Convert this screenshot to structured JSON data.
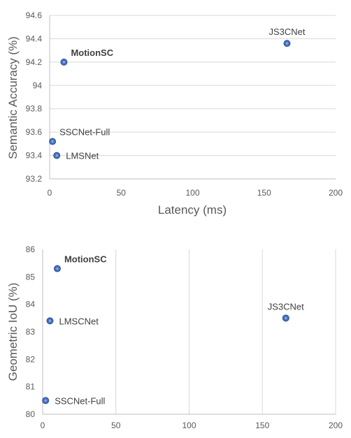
{
  "chart_data": [
    {
      "type": "scatter",
      "title": "",
      "xlabel": "Latency (ms)",
      "ylabel": "Semantic Accuracy (%)",
      "xlim": [
        0,
        200
      ],
      "ylim": [
        93.2,
        94.6
      ],
      "xticks": [
        "0",
        "50",
        "100",
        "150",
        "200"
      ],
      "yticks": [
        "93.2",
        "93.4",
        "93.6",
        "93.8",
        "94",
        "94.2",
        "94.4",
        "94.6"
      ],
      "grid": "horizontal",
      "points": [
        {
          "label": "JS3CNet",
          "x": 166,
          "y": 94.36,
          "bold": false,
          "anchor": "above"
        },
        {
          "label": "MotionSC",
          "x": 10,
          "y": 94.2,
          "bold": true,
          "anchor": "upper-right"
        },
        {
          "label": "SSCNet-Full",
          "x": 2,
          "y": 93.52,
          "bold": false,
          "anchor": "upper-right"
        },
        {
          "label": "LMSNet",
          "x": 5,
          "y": 93.4,
          "bold": false,
          "anchor": "right"
        }
      ]
    },
    {
      "type": "scatter",
      "title": "",
      "xlabel": "",
      "ylabel": "Geometric IoU (%)",
      "xlim": [
        0,
        200
      ],
      "ylim": [
        80,
        86
      ],
      "xticks": [
        "0",
        "50",
        "100",
        "150",
        "200"
      ],
      "yticks": [
        "80",
        "81",
        "82",
        "83",
        "84",
        "85",
        "86"
      ],
      "grid": "vertical",
      "points": [
        {
          "label": "MotionSC",
          "x": 10,
          "y": 85.3,
          "bold": true,
          "anchor": "upper-right"
        },
        {
          "label": "JS3CNet",
          "x": 166,
          "y": 83.5,
          "bold": false,
          "anchor": "above"
        },
        {
          "label": "LMSCNet",
          "x": 5,
          "y": 83.4,
          "bold": false,
          "anchor": "right"
        },
        {
          "label": "SSCNet-Full",
          "x": 2,
          "y": 80.5,
          "bold": false,
          "anchor": "right"
        }
      ]
    }
  ]
}
